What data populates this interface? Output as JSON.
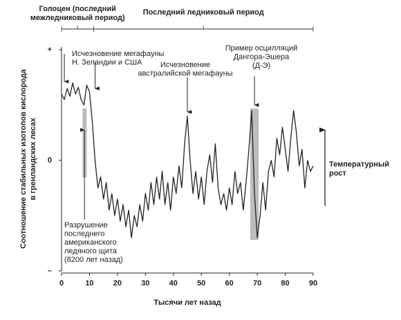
{
  "chart_data": {
    "type": "line",
    "x_label": "Тысячи лет назад",
    "y_label": [
      "Соотношение стабильных изотопов кислорода",
      "в гренландских лесах"
    ],
    "xlim": [
      0,
      90
    ],
    "xticks": [
      0,
      10,
      20,
      30,
      40,
      50,
      60,
      70,
      80,
      90
    ],
    "ylim": [
      -1,
      1
    ],
    "yticks": [
      {
        "value": 1,
        "label": "+"
      },
      {
        "value": 0,
        "label": "0"
      },
      {
        "value": -1,
        "label": "–"
      }
    ],
    "color": "#222222",
    "x": [
      0,
      1,
      2,
      3,
      4,
      5,
      6,
      7,
      8,
      9,
      10,
      11,
      12,
      13,
      14,
      15,
      16,
      17,
      18,
      19,
      20,
      21,
      22,
      23,
      24,
      25,
      26,
      27,
      28,
      29,
      30,
      31,
      32,
      33,
      34,
      35,
      36,
      37,
      38,
      39,
      40,
      41,
      42,
      43,
      44,
      45,
      46,
      47,
      48,
      49,
      50,
      51,
      52,
      53,
      54,
      55,
      56,
      57,
      58,
      59,
      60,
      61,
      62,
      63,
      64,
      65,
      66,
      67,
      68,
      69,
      70,
      71,
      72,
      73,
      74,
      75,
      76,
      77,
      78,
      79,
      80,
      81,
      82,
      83,
      84,
      85,
      86,
      87,
      88,
      89,
      90
    ],
    "values": [
      0.6,
      0.55,
      0.65,
      0.58,
      0.7,
      0.6,
      0.66,
      0.55,
      0.5,
      0.68,
      0.62,
      0.35,
      0.0,
      -0.25,
      -0.15,
      -0.35,
      -0.2,
      -0.45,
      -0.3,
      -0.5,
      -0.35,
      -0.55,
      -0.4,
      -0.6,
      -0.45,
      -0.7,
      -0.5,
      -0.6,
      -0.4,
      -0.55,
      -0.3,
      -0.45,
      -0.2,
      -0.4,
      -0.15,
      -0.35,
      -0.1,
      -0.4,
      -0.2,
      -0.45,
      -0.15,
      -0.3,
      -0.05,
      -0.25,
      0.15,
      0.4,
      0.0,
      -0.3,
      -0.1,
      -0.35,
      -0.15,
      -0.4,
      -0.1,
      0.05,
      -0.2,
      0.15,
      -0.25,
      -0.4,
      -0.3,
      -0.45,
      -0.25,
      -0.4,
      -0.1,
      -0.3,
      -0.2,
      -0.45,
      -0.2,
      0.1,
      0.45,
      -0.3,
      -0.7,
      -0.5,
      -0.2,
      -0.45,
      -0.1,
      0.0,
      -0.15,
      0.2,
      0.05,
      0.3,
      0.1,
      -0.1,
      0.2,
      0.45,
      0.25,
      -0.05,
      0.1,
      -0.25,
      0.0,
      -0.1,
      -0.05
    ],
    "highlights": [
      [
        7.5,
        9
      ],
      [
        67.5,
        70.5
      ]
    ],
    "periods": [
      {
        "label": [
          "Голоцен (последний",
          "межледниковый период)"
        ],
        "range": [
          0,
          11.5
        ]
      },
      {
        "label": [
          "Последний ледниковый период"
        ],
        "range": [
          11.5,
          90
        ]
      }
    ],
    "annotations": [
      {
        "text": [
          "Исчезновение мегафауны",
          "Н. Зеландии и США"
        ],
        "arrows": [
          1,
          12
        ]
      },
      {
        "text": [
          "Исчезновение",
          "австралийской мегафауны"
        ],
        "arrows": [
          45
        ]
      },
      {
        "text": [
          "Пример осцилляций",
          "Дангора-Эшера",
          "(Д-Э)"
        ],
        "arrows": [
          69
        ]
      },
      {
        "text": [
          "Разрушение",
          "последнего",
          "американского",
          "ледяного щита",
          "(8200 лет назад)"
        ],
        "arrows": [
          8.2
        ]
      }
    ],
    "side_note": [
      "Температурный",
      "рост"
    ]
  }
}
